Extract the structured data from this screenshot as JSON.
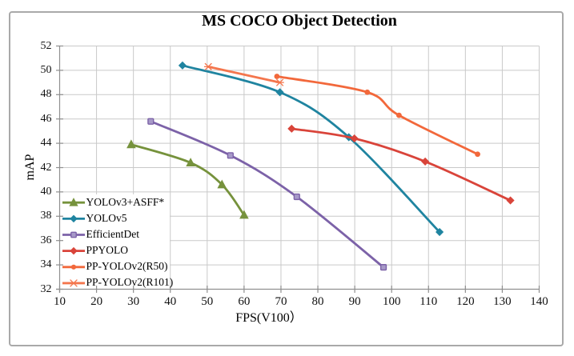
{
  "chart_data": {
    "type": "line",
    "title": "MS COCO Object Detection",
    "xlabel": "FPS(V100）",
    "ylabel": "mAP",
    "xlim": [
      10,
      140
    ],
    "ylim": [
      32,
      52
    ],
    "x_ticks": [
      10,
      20,
      30,
      40,
      50,
      60,
      70,
      80,
      90,
      100,
      110,
      120,
      130,
      140
    ],
    "y_ticks": [
      32,
      34,
      36,
      38,
      40,
      42,
      44,
      46,
      48,
      50,
      52
    ],
    "grid": true,
    "legend_position": "inside bottom-left",
    "series": [
      {
        "name": "YOLOv3+ASFF*",
        "color": "#76923c",
        "marker": "triangle",
        "marker_fill": "#76923c",
        "points": [
          [
            29.4,
            43.9
          ],
          [
            45.5,
            42.4
          ],
          [
            54.0,
            40.6
          ],
          [
            60.0,
            38.1
          ]
        ]
      },
      {
        "name": "YOLOv5",
        "color": "#1f84a0",
        "marker": "diamond",
        "marker_fill": "#1f84a0",
        "points": [
          [
            43.3,
            50.4
          ],
          [
            69.7,
            48.2
          ],
          [
            88.4,
            44.5
          ],
          [
            113.0,
            36.7
          ]
        ]
      },
      {
        "name": "EfficientDet",
        "color": "#7c62a8",
        "marker": "square",
        "marker_fill": "#a79ac8",
        "points": [
          [
            34.7,
            45.8
          ],
          [
            56.3,
            43.0
          ],
          [
            74.3,
            39.6
          ],
          [
            97.8,
            33.8
          ]
        ]
      },
      {
        "name": "PPYOLO",
        "color": "#d9443a",
        "marker": "diamond",
        "marker_fill": "#d9443a",
        "points": [
          [
            72.9,
            45.2
          ],
          [
            89.9,
            44.4
          ],
          [
            109.1,
            42.5
          ],
          [
            132.2,
            39.3
          ]
        ]
      },
      {
        "name": "PP-YOLOv2(R50)",
        "color": "#f2683b",
        "marker": "circle",
        "marker_fill": "#f2683b",
        "points": [
          [
            68.9,
            49.5
          ],
          [
            93.4,
            48.2
          ],
          [
            102.0,
            46.3
          ],
          [
            123.3,
            43.1
          ]
        ]
      },
      {
        "name": "PP-YOLOv2(R101)",
        "color": "#f4764d",
        "marker": "x",
        "marker_fill": "#f4764d",
        "points": [
          [
            50.3,
            50.3
          ],
          [
            69.7,
            49.0
          ]
        ]
      }
    ]
  },
  "colors": {
    "grid": "#c9c9c9",
    "axis": "#8f8f8f",
    "frame_border": "#a9a9a9",
    "background": "#ffffff",
    "text": "#000000"
  }
}
